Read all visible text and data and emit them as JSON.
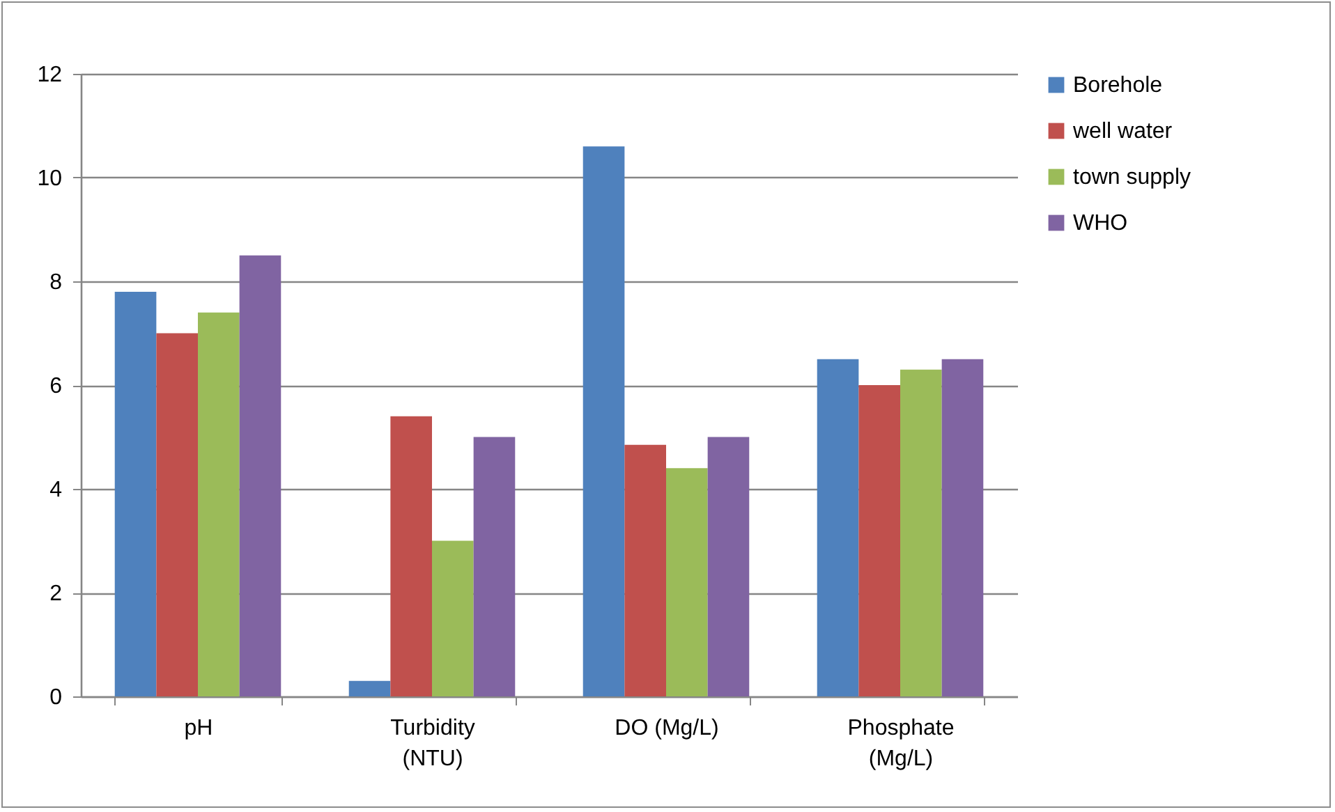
{
  "chart_data": {
    "type": "bar",
    "categories": [
      "pH",
      "Turbidity (NTU)",
      "DO (Mg/L)",
      "Phosphate (Mg/L)"
    ],
    "series": [
      {
        "name": "Borehole",
        "color": "#4f81bd",
        "values": [
          7.8,
          0.3,
          10.6,
          6.5
        ]
      },
      {
        "name": "well water",
        "color": "#c0504d",
        "values": [
          7.0,
          5.4,
          4.85,
          6.0
        ]
      },
      {
        "name": "town supply",
        "color": "#9bbb59",
        "values": [
          7.4,
          3.0,
          4.4,
          6.3
        ]
      },
      {
        "name": "WHO",
        "color": "#8064a2",
        "values": [
          8.5,
          5.0,
          5.0,
          6.5
        ]
      }
    ],
    "ylim": [
      0,
      12
    ],
    "yticks": [
      0,
      2,
      4,
      6,
      8,
      10,
      12
    ],
    "grid": "y",
    "legend": "right"
  }
}
